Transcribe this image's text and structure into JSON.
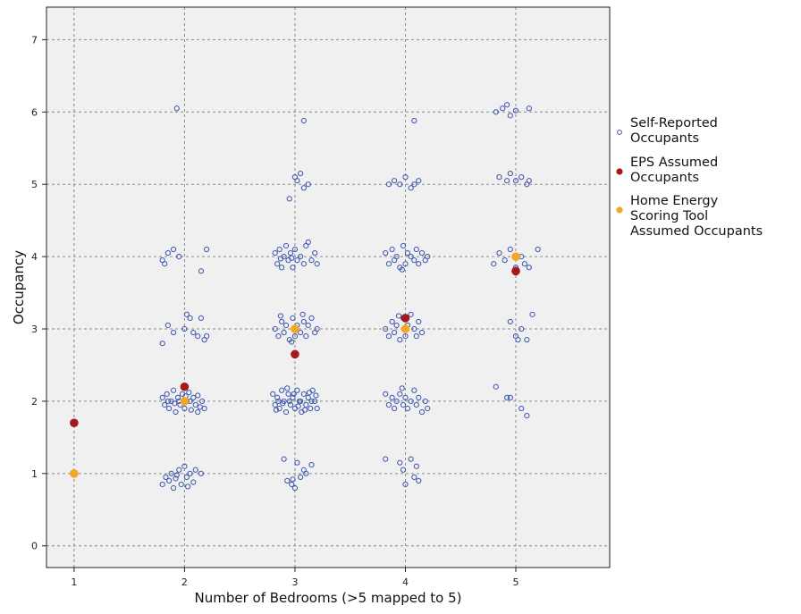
{
  "chart_data": {
    "type": "scatter",
    "xlabel": "Number of Bedrooms (>5 mapped to 5)",
    "ylabel": "Occupancy",
    "xlim": [
      0.75,
      5.85
    ],
    "ylim": [
      -0.3,
      7.45
    ],
    "x_ticks": [
      1,
      2,
      3,
      4,
      5
    ],
    "y_ticks": [
      0,
      1,
      2,
      3,
      4,
      5,
      6,
      7
    ],
    "grid": true,
    "legend_position": "right",
    "series": [
      {
        "name": "Self-Reported Occupants",
        "marker": "open-circle",
        "color": "#3b54b0",
        "points": [
          [
            1.0,
            1.0
          ],
          [
            1.8,
            0.85
          ],
          [
            1.83,
            0.95
          ],
          [
            1.86,
            0.9
          ],
          [
            1.88,
            1.0
          ],
          [
            1.9,
            0.8
          ],
          [
            1.92,
            0.93
          ],
          [
            1.95,
            1.05
          ],
          [
            1.97,
            0.85
          ],
          [
            2.0,
            1.1
          ],
          [
            2.02,
            0.95
          ],
          [
            2.05,
            1.0
          ],
          [
            2.08,
            0.88
          ],
          [
            2.1,
            1.05
          ],
          [
            2.15,
            1.0
          ],
          [
            1.93,
            0.98
          ],
          [
            2.03,
            0.82
          ],
          [
            2.9,
            1.2
          ],
          [
            2.93,
            0.9
          ],
          [
            2.97,
            0.85
          ],
          [
            3.0,
            0.8
          ],
          [
            3.02,
            1.15
          ],
          [
            3.05,
            0.95
          ],
          [
            3.08,
            1.05
          ],
          [
            3.1,
            1.0
          ],
          [
            3.15,
            1.12
          ],
          [
            2.98,
            0.92
          ],
          [
            3.82,
            1.2
          ],
          [
            3.95,
            1.15
          ],
          [
            3.98,
            1.05
          ],
          [
            4.05,
            1.2
          ],
          [
            4.08,
            0.95
          ],
          [
            4.12,
            0.9
          ],
          [
            4.1,
            1.1
          ],
          [
            4.0,
            0.85
          ],
          [
            1.8,
            2.05
          ],
          [
            1.82,
            1.95
          ],
          [
            1.84,
            2.1
          ],
          [
            1.86,
            1.9
          ],
          [
            1.88,
            2.0
          ],
          [
            1.9,
            2.15
          ],
          [
            1.92,
            1.85
          ],
          [
            1.94,
            2.05
          ],
          [
            1.96,
            1.95
          ],
          [
            1.98,
            2.1
          ],
          [
            2.0,
            1.9
          ],
          [
            2.02,
            2.0
          ],
          [
            2.04,
            2.12
          ],
          [
            2.06,
            1.88
          ],
          [
            2.08,
            2.05
          ],
          [
            2.1,
            1.95
          ],
          [
            2.12,
            2.08
          ],
          [
            2.14,
            1.92
          ],
          [
            2.16,
            2.0
          ],
          [
            2.18,
            1.9
          ],
          [
            1.85,
            2.0
          ],
          [
            1.95,
            2.0
          ],
          [
            2.05,
            2.0
          ],
          [
            2.12,
            1.85
          ],
          [
            1.91,
            1.97
          ],
          [
            2.01,
            2.07
          ],
          [
            2.8,
            2.1
          ],
          [
            2.82,
            1.95
          ],
          [
            2.84,
            2.05
          ],
          [
            2.86,
            1.9
          ],
          [
            2.88,
            2.15
          ],
          [
            2.9,
            2.0
          ],
          [
            2.92,
            1.85
          ],
          [
            2.94,
            2.1
          ],
          [
            2.96,
            1.95
          ],
          [
            2.98,
            2.05
          ],
          [
            3.0,
            1.9
          ],
          [
            3.02,
            2.15
          ],
          [
            3.04,
            2.0
          ],
          [
            3.06,
            1.85
          ],
          [
            3.08,
            2.1
          ],
          [
            3.1,
            1.95
          ],
          [
            3.12,
            2.05
          ],
          [
            3.14,
            1.9
          ],
          [
            3.16,
            2.15
          ],
          [
            3.18,
            2.0
          ],
          [
            3.2,
            1.9
          ],
          [
            2.85,
            2.0
          ],
          [
            2.95,
            2.0
          ],
          [
            3.05,
            2.0
          ],
          [
            3.15,
            2.0
          ],
          [
            2.83,
            1.88
          ],
          [
            2.93,
            2.18
          ],
          [
            3.03,
            1.93
          ],
          [
            3.13,
            2.12
          ],
          [
            2.89,
            1.97
          ],
          [
            2.99,
            2.1
          ],
          [
            3.09,
            1.88
          ],
          [
            3.19,
            2.08
          ],
          [
            3.82,
            2.1
          ],
          [
            3.85,
            1.95
          ],
          [
            3.88,
            2.05
          ],
          [
            3.9,
            1.9
          ],
          [
            3.92,
            2.0
          ],
          [
            3.95,
            2.1
          ],
          [
            3.98,
            1.95
          ],
          [
            4.0,
            2.05
          ],
          [
            4.02,
            1.9
          ],
          [
            4.05,
            2.0
          ],
          [
            4.08,
            2.15
          ],
          [
            4.1,
            1.95
          ],
          [
            4.12,
            2.05
          ],
          [
            4.15,
            1.85
          ],
          [
            4.18,
            2.0
          ],
          [
            4.2,
            1.9
          ],
          [
            3.97,
            2.18
          ],
          [
            4.82,
            2.2
          ],
          [
            4.92,
            2.05
          ],
          [
            4.95,
            2.05
          ],
          [
            5.05,
            1.9
          ],
          [
            5.1,
            1.8
          ],
          [
            1.8,
            2.8
          ],
          [
            1.85,
            3.05
          ],
          [
            1.9,
            2.95
          ],
          [
            2.0,
            3.0
          ],
          [
            2.02,
            3.2
          ],
          [
            2.05,
            3.15
          ],
          [
            2.08,
            2.95
          ],
          [
            2.12,
            2.9
          ],
          [
            2.15,
            3.15
          ],
          [
            2.18,
            2.85
          ],
          [
            2.2,
            2.9
          ],
          [
            2.82,
            3.0
          ],
          [
            2.85,
            2.9
          ],
          [
            2.88,
            3.1
          ],
          [
            2.9,
            2.95
          ],
          [
            2.92,
            3.05
          ],
          [
            2.95,
            2.85
          ],
          [
            2.98,
            3.15
          ],
          [
            3.0,
            2.9
          ],
          [
            3.02,
            3.05
          ],
          [
            3.05,
            2.95
          ],
          [
            3.08,
            3.1
          ],
          [
            3.1,
            2.9
          ],
          [
            3.12,
            3.05
          ],
          [
            3.15,
            3.15
          ],
          [
            3.18,
            2.95
          ],
          [
            3.2,
            3.0
          ],
          [
            2.87,
            3.18
          ],
          [
            2.97,
            2.82
          ],
          [
            3.07,
            3.2
          ],
          [
            3.82,
            3.0
          ],
          [
            3.85,
            2.9
          ],
          [
            3.88,
            3.1
          ],
          [
            3.9,
            2.95
          ],
          [
            3.92,
            3.05
          ],
          [
            3.95,
            2.85
          ],
          [
            3.98,
            3.15
          ],
          [
            4.0,
            2.9
          ],
          [
            4.02,
            3.05
          ],
          [
            4.05,
            3.2
          ],
          [
            4.08,
            3.0
          ],
          [
            4.1,
            2.9
          ],
          [
            4.12,
            3.1
          ],
          [
            4.15,
            2.95
          ],
          [
            3.94,
            3.18
          ],
          [
            4.95,
            3.1
          ],
          [
            5.0,
            2.9
          ],
          [
            5.02,
            2.85
          ],
          [
            5.05,
            3.0
          ],
          [
            5.1,
            2.85
          ],
          [
            5.15,
            3.2
          ],
          [
            1.8,
            3.95
          ],
          [
            1.82,
            3.9
          ],
          [
            1.85,
            4.05
          ],
          [
            1.9,
            4.1
          ],
          [
            1.95,
            4.0
          ],
          [
            2.15,
            3.8
          ],
          [
            2.2,
            4.1
          ],
          [
            2.82,
            4.05
          ],
          [
            2.84,
            3.9
          ],
          [
            2.86,
            4.1
          ],
          [
            2.88,
            3.85
          ],
          [
            2.9,
            4.0
          ],
          [
            2.92,
            4.15
          ],
          [
            2.94,
            3.95
          ],
          [
            2.96,
            4.05
          ],
          [
            2.98,
            3.85
          ],
          [
            3.0,
            4.1
          ],
          [
            3.02,
            3.95
          ],
          [
            3.05,
            4.0
          ],
          [
            3.08,
            3.9
          ],
          [
            3.1,
            4.15
          ],
          [
            3.12,
            4.2
          ],
          [
            3.15,
            3.95
          ],
          [
            3.18,
            4.05
          ],
          [
            3.2,
            3.9
          ],
          [
            2.87,
            3.97
          ],
          [
            2.97,
            3.98
          ],
          [
            3.82,
            4.05
          ],
          [
            3.85,
            3.9
          ],
          [
            3.88,
            4.1
          ],
          [
            3.9,
            3.95
          ],
          [
            3.92,
            4.0
          ],
          [
            3.95,
            3.85
          ],
          [
            3.98,
            4.15
          ],
          [
            4.0,
            3.9
          ],
          [
            4.02,
            4.05
          ],
          [
            4.05,
            4.0
          ],
          [
            4.08,
            3.95
          ],
          [
            4.1,
            4.1
          ],
          [
            4.12,
            3.9
          ],
          [
            4.15,
            4.05
          ],
          [
            4.18,
            3.95
          ],
          [
            4.2,
            4.0
          ],
          [
            3.97,
            3.82
          ],
          [
            4.8,
            3.9
          ],
          [
            4.85,
            4.05
          ],
          [
            4.9,
            3.95
          ],
          [
            4.95,
            4.1
          ],
          [
            5.0,
            3.85
          ],
          [
            5.05,
            4.0
          ],
          [
            5.08,
            3.9
          ],
          [
            5.12,
            3.85
          ],
          [
            5.2,
            4.1
          ],
          [
            2.95,
            4.8
          ],
          [
            3.0,
            5.1
          ],
          [
            3.02,
            5.05
          ],
          [
            3.05,
            5.15
          ],
          [
            3.08,
            4.95
          ],
          [
            3.12,
            5.0
          ],
          [
            3.85,
            5.0
          ],
          [
            3.9,
            5.05
          ],
          [
            3.95,
            5.0
          ],
          [
            4.0,
            5.1
          ],
          [
            4.05,
            4.95
          ],
          [
            4.08,
            5.0
          ],
          [
            4.12,
            5.05
          ],
          [
            4.85,
            5.1
          ],
          [
            4.92,
            5.05
          ],
          [
            4.95,
            5.15
          ],
          [
            5.0,
            5.05
          ],
          [
            5.05,
            5.1
          ],
          [
            5.1,
            5.0
          ],
          [
            5.12,
            5.05
          ],
          [
            1.93,
            6.05
          ],
          [
            3.08,
            5.88
          ],
          [
            4.08,
            5.88
          ],
          [
            4.82,
            6.0
          ],
          [
            4.88,
            6.05
          ],
          [
            4.92,
            6.1
          ],
          [
            4.95,
            5.95
          ],
          [
            5.0,
            6.02
          ],
          [
            5.12,
            6.05
          ]
        ]
      },
      {
        "name": "EPS Assumed Occupants",
        "marker": "filled-circle",
        "color": "#a31a1a",
        "points": [
          [
            1.0,
            1.7
          ],
          [
            2.0,
            2.2
          ],
          [
            3.0,
            2.65
          ],
          [
            4.0,
            3.15
          ],
          [
            5.0,
            3.8
          ]
        ]
      },
      {
        "name": "Home Energy Scoring Tool Assumed Occupants",
        "marker": "filled-circle",
        "color": "#f5a623",
        "points": [
          [
            1.0,
            1.0
          ],
          [
            2.0,
            2.0
          ],
          [
            3.0,
            3.0
          ],
          [
            4.0,
            3.0
          ],
          [
            5.0,
            4.0
          ]
        ]
      }
    ],
    "legend": [
      {
        "lines": [
          "Self-Reported",
          "Occupants"
        ]
      },
      {
        "lines": [
          "EPS Assumed",
          "Occupants"
        ]
      },
      {
        "lines": [
          "Home Energy",
          "Scoring Tool",
          "Assumed Occupants"
        ]
      }
    ]
  }
}
